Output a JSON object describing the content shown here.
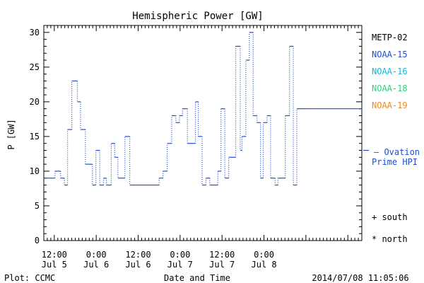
{
  "chart_data": {
    "type": "line",
    "title": "Hemispheric Power [GW]",
    "xlabel": "Date and Time",
    "ylabel": "P [GW]",
    "ylim": [
      0,
      31
    ],
    "yticks": [
      0,
      5,
      10,
      15,
      20,
      25,
      30
    ],
    "xlim": [
      "2014-07-05 09:00",
      "2014-07-09 04:00"
    ],
    "x_tick_labels": [
      {
        "time": "12:00",
        "date": "Jul 5"
      },
      {
        "time": "0:00",
        "date": "Jul 6"
      },
      {
        "time": "12:00",
        "date": "Jul 6"
      },
      {
        "time": "0:00",
        "date": "Jul 7"
      },
      {
        "time": "12:00",
        "date": "Jul 7"
      },
      {
        "time": "0:00",
        "date": "Jul 8"
      }
    ],
    "x_tick_hours": [
      12,
      24,
      36,
      48,
      60,
      72
    ],
    "grid": false,
    "line_style": "dotted-steps",
    "series": [
      {
        "name": "NOAA-15",
        "color": "#1f4fd0",
        "x": [
          "2014-07-05 09:00",
          "2014-07-05 12:12",
          "2014-07-05 13:48",
          "2014-07-05 14:54",
          "2014-07-05 15:48",
          "2014-07-05 17:00",
          "2014-07-05 18:36",
          "2014-07-05 19:30",
          "2014-07-05 20:54",
          "2014-07-05 22:54",
          "2014-07-05 23:54",
          "2014-07-06 01:00",
          "2014-07-06 02:06",
          "2014-07-06 02:54",
          "2014-07-06 04:18",
          "2014-07-06 05:18",
          "2014-07-06 06:12",
          "2014-07-06 08:12",
          "2014-07-06 09:36",
          "2014-07-06 10:54",
          "2014-07-06 11:54",
          "2014-07-06 18:00",
          "2014-07-06 19:06",
          "2014-07-06 20:18",
          "2014-07-06 21:36",
          "2014-07-06 22:48",
          "2014-07-06 23:48",
          "2014-07-07 00:42",
          "2014-07-07 02:06",
          "2014-07-07 04:24",
          "2014-07-07 05:12",
          "2014-07-07 06:18",
          "2014-07-07 07:24",
          "2014-07-07 08:30",
          "2014-07-07 10:48",
          "2014-07-07 11:42",
          "2014-07-07 12:48",
          "2014-07-07 13:54",
          "2014-07-07 15:54",
          "2014-07-07 17:12",
          "2014-07-07 17:42",
          "2014-07-07 18:48",
          "2014-07-07 19:48",
          "2014-07-07 20:54",
          "2014-07-07 22:00",
          "2014-07-07 23:00",
          "2014-07-07 23:48",
          "2014-07-08 00:54",
          "2014-07-08 01:54",
          "2014-07-08 03:12",
          "2014-07-08 04:00",
          "2014-07-08 06:06",
          "2014-07-08 07:18",
          "2014-07-08 08:24",
          "2014-07-08 09:24",
          "2014-07-08 10:42",
          "2014-07-08 12:18"
        ],
        "values": [
          9,
          10,
          9,
          8,
          16,
          23,
          20,
          16,
          11,
          8,
          13,
          8,
          9,
          8,
          14,
          12,
          9,
          15,
          8,
          8,
          8,
          9,
          10,
          14,
          18,
          17,
          18,
          19,
          14,
          20,
          15,
          8,
          9,
          8,
          10,
          19,
          9,
          12,
          28,
          13,
          15,
          26,
          30,
          18,
          17,
          9,
          17,
          18,
          9,
          8,
          9,
          18,
          28,
          8,
          19,
          19,
          19
        ]
      }
    ],
    "legend": [
      {
        "name": "METP-02",
        "color": "#000000"
      },
      {
        "name": "NOAA-15",
        "color": "#1f4fd0"
      },
      {
        "name": "NOAA-16",
        "color": "#17b7d8"
      },
      {
        "name": "NOAA-18",
        "color": "#2fd178"
      },
      {
        "name": "NOAA-19",
        "color": "#ee8a1f"
      }
    ],
    "ovation_label_1": "— Ovation",
    "ovation_label_2": "Prime HPI",
    "ovation_color": "#1f4fd0",
    "ovation_value": 13,
    "marker_south": "+ south",
    "marker_north": "* north",
    "footer_left": "Plot: CCMC",
    "footer_center": "Date and Time",
    "footer_right": "2014/07/08 11:05:06"
  }
}
